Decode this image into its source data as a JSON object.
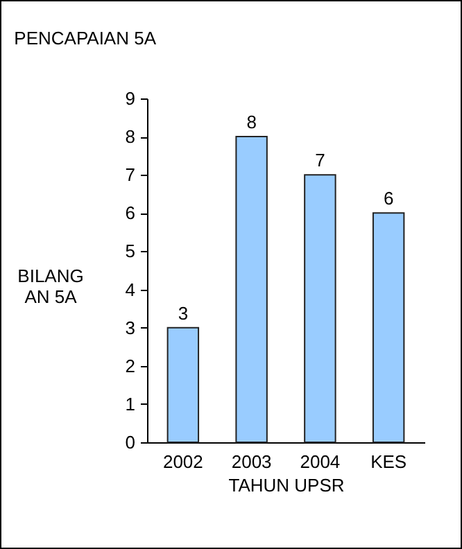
{
  "chart_data": {
    "type": "bar",
    "title": "PENCAPAIAN 5A",
    "xlabel": "TAHUN UPSR",
    "ylabel": "BILANGAN 5A",
    "categories": [
      "2002",
      "2003",
      "2004",
      "KES"
    ],
    "values": [
      3,
      8,
      7,
      6
    ],
    "color": "#99ccff",
    "ylim": [
      0,
      9
    ],
    "yticks": [
      0,
      1,
      2,
      3,
      4,
      5,
      6,
      7,
      8,
      9
    ],
    "grid": false,
    "data_labels": true
  }
}
